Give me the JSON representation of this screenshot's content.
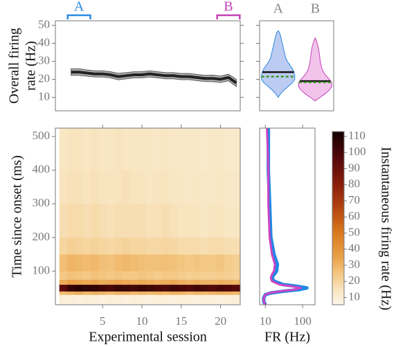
{
  "chart_data": [
    {
      "type": "line",
      "ylabel": [
        "Overall firing",
        "rate (Hz)"
      ],
      "x": [
        1,
        2,
        3,
        4,
        5,
        6,
        7,
        8,
        9,
        10,
        11,
        12,
        13,
        14,
        15,
        16,
        17,
        18,
        19,
        20,
        21,
        22
      ],
      "values": [
        24,
        24,
        23.5,
        23,
        23,
        22.5,
        21.5,
        22,
        22.5,
        22.5,
        23,
        22.5,
        22,
        22,
        21.5,
        21.5,
        21,
        20.5,
        20.5,
        20,
        21,
        18
      ],
      "errors": [
        1.8,
        1.8,
        1.7,
        1.7,
        1.7,
        1.7,
        1.8,
        1.7,
        1.7,
        1.7,
        1.7,
        1.7,
        1.7,
        1.7,
        1.7,
        1.7,
        1.7,
        1.7,
        1.8,
        1.8,
        1.8,
        2
      ],
      "color": "#222222",
      "band_color": "#b0b0b0",
      "xlim": [
        -1,
        22.5
      ],
      "ylim": [
        2.5,
        52.5
      ],
      "yticks": [
        10,
        20,
        30,
        40,
        50
      ],
      "brackets": [
        {
          "label": "A",
          "from": 1,
          "to": 3,
          "color": "#2a8be0"
        },
        {
          "label": "B",
          "from": 20,
          "to": 22,
          "color": "#c440b8"
        }
      ]
    },
    {
      "type": "violin",
      "ylim": [
        2.5,
        52.5
      ],
      "yticks": [
        10,
        20,
        30,
        40,
        50
      ],
      "series": [
        {
          "name": "A",
          "color": "#2a8be0",
          "fill": "#bccbf2",
          "y": [
            10,
            12,
            14,
            16,
            18,
            20,
            22,
            24,
            26,
            28,
            30,
            32,
            34,
            36,
            38,
            40,
            42,
            44,
            46,
            47
          ],
          "density": [
            0,
            0.15,
            0.35,
            0.6,
            0.85,
            1,
            1,
            0.95,
            0.85,
            0.7,
            0.55,
            0.45,
            0.4,
            0.35,
            0.3,
            0.25,
            0.2,
            0.15,
            0.08,
            0
          ],
          "mean": 24,
          "median": 21.5
        },
        {
          "name": "B",
          "color": "#c440b8",
          "fill": "#f2c4ec",
          "y": [
            8,
            10,
            12,
            14,
            16,
            18,
            20,
            22,
            24,
            26,
            28,
            30,
            32,
            34,
            36,
            38,
            40,
            42,
            43
          ],
          "density": [
            0,
            0.3,
            0.6,
            0.85,
            1,
            1,
            0.85,
            0.65,
            0.5,
            0.4,
            0.35,
            0.3,
            0.28,
            0.25,
            0.22,
            0.18,
            0.12,
            0.05,
            0
          ],
          "mean": 19,
          "median": 18.3
        }
      ],
      "mean_color": "#111111",
      "median_color": "#3a9a20"
    },
    {
      "type": "heatmap",
      "ylabel": "Time since onset (ms)",
      "xlabel": "Experimental session",
      "x": [
        0,
        1,
        2,
        3,
        4,
        5,
        6,
        7,
        8,
        9,
        10,
        11,
        12,
        13,
        14,
        15,
        16,
        17,
        18,
        19,
        20,
        21,
        22
      ],
      "y_edges": [
        0,
        30,
        40,
        60,
        75,
        100,
        150,
        200,
        300,
        400,
        525
      ],
      "values": [
        [
          9,
          9,
          8,
          9,
          9,
          8,
          9,
          9,
          8,
          9,
          9,
          8,
          9,
          9,
          8,
          9,
          9,
          8,
          9,
          9,
          8,
          9,
          9
        ],
        [
          28,
          30,
          32,
          29,
          31,
          30,
          28,
          30,
          31,
          29,
          30,
          28,
          30,
          29,
          31,
          30,
          28,
          30,
          29,
          30,
          31,
          30,
          29
        ],
        [
          95,
          104,
          108,
          106,
          105,
          102,
          100,
          104,
          103,
          101,
          104,
          102,
          100,
          99,
          102,
          100,
          98,
          101,
          99,
          97,
          100,
          98,
          96
        ],
        [
          32,
          35,
          34,
          33,
          34,
          32,
          33,
          34,
          33,
          32,
          33,
          32,
          31,
          32,
          33,
          31,
          30,
          31,
          30,
          30,
          31,
          30,
          29
        ],
        [
          24,
          26,
          25,
          24,
          26,
          25,
          24,
          25,
          24,
          24,
          25,
          24,
          23,
          24,
          24,
          23,
          22,
          23,
          22,
          22,
          23,
          22,
          21
        ],
        [
          27,
          30,
          29,
          28,
          29,
          27,
          26,
          28,
          29,
          28,
          27,
          26,
          26,
          27,
          26,
          25,
          24,
          25,
          24,
          24,
          25,
          23,
          22
        ],
        [
          20,
          22,
          21,
          20,
          21,
          20,
          19,
          20,
          21,
          20,
          20,
          19,
          19,
          20,
          19,
          18,
          18,
          18,
          17,
          18,
          18,
          17,
          17
        ],
        [
          17,
          18,
          18,
          17,
          18,
          17,
          16,
          17,
          17,
          17,
          17,
          16,
          16,
          17,
          16,
          15,
          15,
          15,
          14,
          15,
          15,
          14,
          14
        ],
        [
          15,
          16,
          16,
          15,
          16,
          15,
          15,
          15,
          16,
          15,
          15,
          14,
          15,
          15,
          14,
          14,
          13,
          14,
          13,
          13,
          14,
          13,
          13
        ],
        [
          14,
          15,
          15,
          14,
          15,
          14,
          14,
          15,
          14,
          14,
          14,
          14,
          13,
          14,
          13,
          13,
          13,
          13,
          12,
          13,
          13,
          12,
          12
        ]
      ],
      "xlim": [
        -1,
        22.5
      ],
      "ylim": [
        0,
        525
      ],
      "xticks": [
        5,
        10,
        15,
        20
      ],
      "yticks": [
        100,
        200,
        300,
        400,
        500
      ],
      "colorbar": {
        "label": "Instantaneous firing rate (Hz)",
        "clim": [
          5.5,
          113
        ],
        "ticks": [
          10,
          20,
          30,
          40,
          50,
          60,
          70,
          80,
          90,
          100,
          110
        ],
        "stops": [
          {
            "value": 5.5,
            "color": "#fdf6ea"
          },
          {
            "value": 15,
            "color": "#f8e4be"
          },
          {
            "value": 25,
            "color": "#f3c680"
          },
          {
            "value": 35,
            "color": "#eba24a"
          },
          {
            "value": 50,
            "color": "#d97a1e"
          },
          {
            "value": 65,
            "color": "#b6460f"
          },
          {
            "value": 80,
            "color": "#8a1e0c"
          },
          {
            "value": 95,
            "color": "#5a0a0a"
          },
          {
            "value": 113,
            "color": "#140000"
          }
        ]
      }
    },
    {
      "type": "line",
      "xlabel": "FR (Hz)",
      "log_x": true,
      "xlim": [
        7,
        215
      ],
      "xticks": [
        10,
        100
      ],
      "ylim": [
        0,
        525
      ],
      "y": [
        0,
        10,
        20,
        30,
        35,
        40,
        45,
        50,
        55,
        60,
        70,
        80,
        90,
        100,
        120,
        150,
        200,
        300,
        400,
        525
      ],
      "series": [
        {
          "color": "#1e88e5",
          "values": [
            10,
            9,
            9,
            10,
            14,
            30,
            80,
            130,
            70,
            30,
            17,
            15,
            17,
            20,
            21,
            17,
            14,
            13,
            12,
            12
          ]
        },
        {
          "color": "#cc44c4",
          "values": [
            10,
            9,
            9,
            10,
            13,
            25,
            60,
            90,
            50,
            24,
            15,
            14,
            15,
            17,
            18,
            15,
            13,
            12,
            12,
            11
          ]
        }
      ]
    }
  ]
}
